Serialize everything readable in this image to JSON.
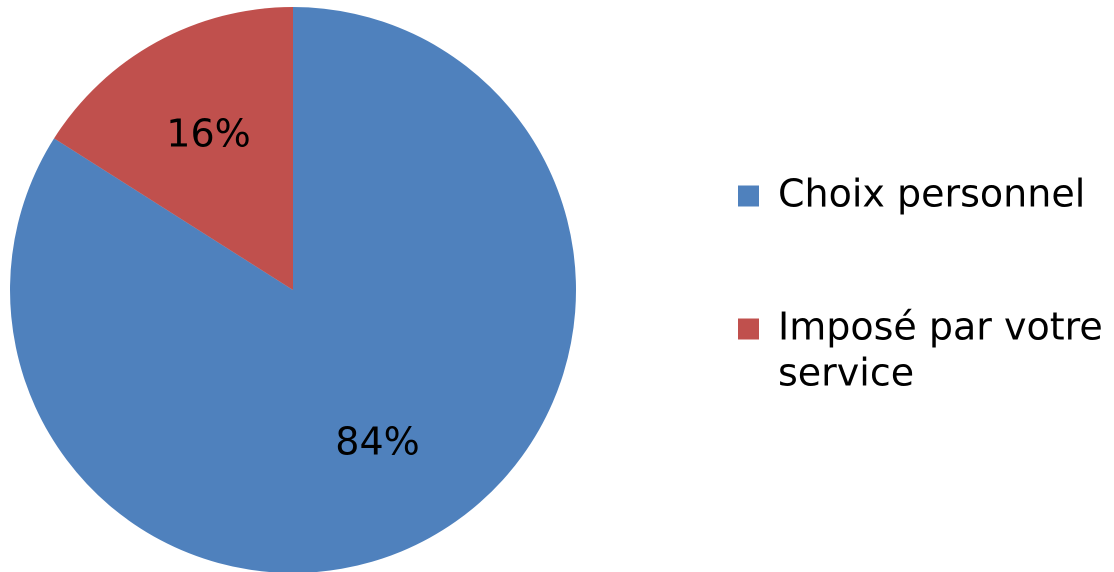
{
  "chart_data": {
    "type": "pie",
    "title": "",
    "slices": [
      {
        "label": "Choix personnel",
        "value": 84,
        "display": "84%",
        "color": "#4F81BD"
      },
      {
        "label": "Imposé par votre service",
        "value": 16,
        "display": "16%",
        "color": "#C0504D"
      }
    ],
    "start_angle_deg": 0,
    "direction": "clockwise",
    "legend": {
      "position": "right",
      "entries": [
        {
          "lines": [
            "Choix personnel"
          ],
          "color": "#4F81BD"
        },
        {
          "lines": [
            "Imposé par votre",
            "service"
          ],
          "color": "#C0504D"
        }
      ]
    }
  }
}
